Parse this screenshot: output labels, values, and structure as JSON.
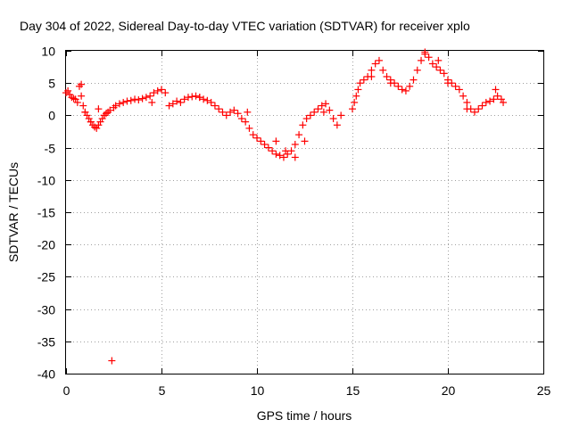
{
  "chart_data": {
    "type": "scatter",
    "title": "Day 304 of 2022, Sidereal Day-to-day VTEC variation (SDTVAR) for receiver xplo",
    "xlabel": "GPS time / hours",
    "ylabel": "SDTVAR / TECUs",
    "xlim": [
      0,
      25
    ],
    "ylim": [
      -40,
      10
    ],
    "xticks": [
      0,
      5,
      10,
      15,
      20,
      25
    ],
    "yticks": [
      10,
      5,
      0,
      -5,
      -10,
      -15,
      -20,
      -25,
      -30,
      -35,
      -40
    ],
    "grid": true,
    "marker": "+",
    "color": "#ff0000",
    "series": [
      {
        "name": "SDTVAR",
        "x": [
          0.0,
          0.1,
          0.2,
          0.3,
          0.4,
          0.5,
          0.6,
          0.7,
          0.8,
          0.9,
          1.0,
          1.1,
          1.2,
          1.3,
          1.4,
          1.5,
          1.6,
          1.7,
          1.8,
          1.9,
          2.0,
          2.1,
          2.2,
          2.3,
          2.5,
          2.6,
          2.8,
          3.0,
          3.2,
          3.4,
          3.6,
          3.8,
          4.0,
          4.2,
          4.4,
          4.6,
          4.8,
          5.0,
          5.2,
          5.4,
          5.6,
          5.8,
          6.0,
          6.2,
          6.4,
          6.6,
          6.8,
          7.0,
          7.2,
          7.4,
          7.6,
          7.8,
          8.0,
          8.2,
          8.4,
          8.6,
          8.8,
          9.0,
          9.2,
          9.4,
          9.6,
          9.8,
          10.0,
          10.2,
          10.4,
          10.6,
          10.8,
          11.0,
          11.2,
          11.4,
          11.6,
          11.8,
          12.0,
          12.2,
          12.4,
          12.6,
          12.8,
          13.0,
          13.2,
          13.4,
          13.6,
          13.8,
          14.0,
          14.2,
          14.4,
          15.0,
          15.1,
          15.2,
          15.3,
          15.4,
          15.6,
          15.8,
          16.0,
          16.2,
          16.4,
          16.6,
          16.8,
          17.0,
          17.2,
          17.4,
          17.6,
          17.8,
          18.0,
          18.2,
          18.4,
          18.6,
          18.8,
          19.0,
          19.2,
          19.4,
          19.6,
          19.8,
          20.0,
          20.2,
          20.4,
          20.6,
          20.8,
          21.0,
          21.2,
          21.4,
          21.6,
          21.8,
          22.0,
          22.2,
          22.4,
          22.6,
          22.8,
          22.9,
          0.8,
          1.0,
          1.3,
          1.7,
          2.0,
          4.5,
          7.0,
          9.5,
          11.0,
          11.5,
          12.0,
          12.5,
          13.5,
          16.0,
          17.0,
          18.8,
          19.5,
          20.0,
          21.0,
          22.5,
          2.4
        ],
        "y": [
          3.5,
          3.8,
          3.2,
          2.8,
          2.6,
          2.5,
          2.0,
          4.5,
          3.0,
          1.5,
          0.5,
          0.0,
          -0.5,
          -1.0,
          -1.5,
          -1.8,
          -2.0,
          -1.5,
          -1.0,
          -0.5,
          0.0,
          0.3,
          0.5,
          0.8,
          1.2,
          1.5,
          1.8,
          2.0,
          2.2,
          2.3,
          2.5,
          2.4,
          2.6,
          2.8,
          3.0,
          3.5,
          3.8,
          4.0,
          3.5,
          1.5,
          1.8,
          2.2,
          2.0,
          2.5,
          2.8,
          2.9,
          3.0,
          2.8,
          2.5,
          2.3,
          2.0,
          1.5,
          1.0,
          0.5,
          0.0,
          0.5,
          0.8,
          0.3,
          -0.5,
          -1.0,
          -2.0,
          -3.0,
          -3.5,
          -4.0,
          -4.5,
          -5.0,
          -5.5,
          -6.0,
          -6.2,
          -6.5,
          -6.0,
          -5.5,
          -4.5,
          -3.0,
          -1.5,
          -0.5,
          0.0,
          0.5,
          1.0,
          1.5,
          1.8,
          0.8,
          -0.5,
          -1.5,
          0.0,
          1.0,
          2.0,
          3.0,
          4.0,
          5.0,
          5.5,
          6.0,
          7.0,
          8.0,
          8.5,
          7.0,
          6.0,
          5.5,
          5.0,
          4.5,
          4.0,
          3.8,
          4.5,
          5.5,
          7.0,
          8.5,
          9.5,
          9.0,
          8.0,
          7.5,
          7.0,
          6.5,
          5.5,
          5.0,
          4.5,
          4.0,
          3.0,
          2.0,
          1.0,
          0.5,
          1.0,
          1.5,
          2.0,
          2.2,
          2.5,
          3.0,
          2.5,
          2.0,
          4.8,
          0.5,
          -1.0,
          1.0,
          0.0,
          2.0,
          2.8,
          0.5,
          -4.0,
          -5.5,
          -6.5,
          -4.0,
          0.5,
          6.0,
          5.0,
          9.8,
          8.5,
          5.0,
          1.0,
          4.0,
          -38.0
        ]
      }
    ]
  }
}
